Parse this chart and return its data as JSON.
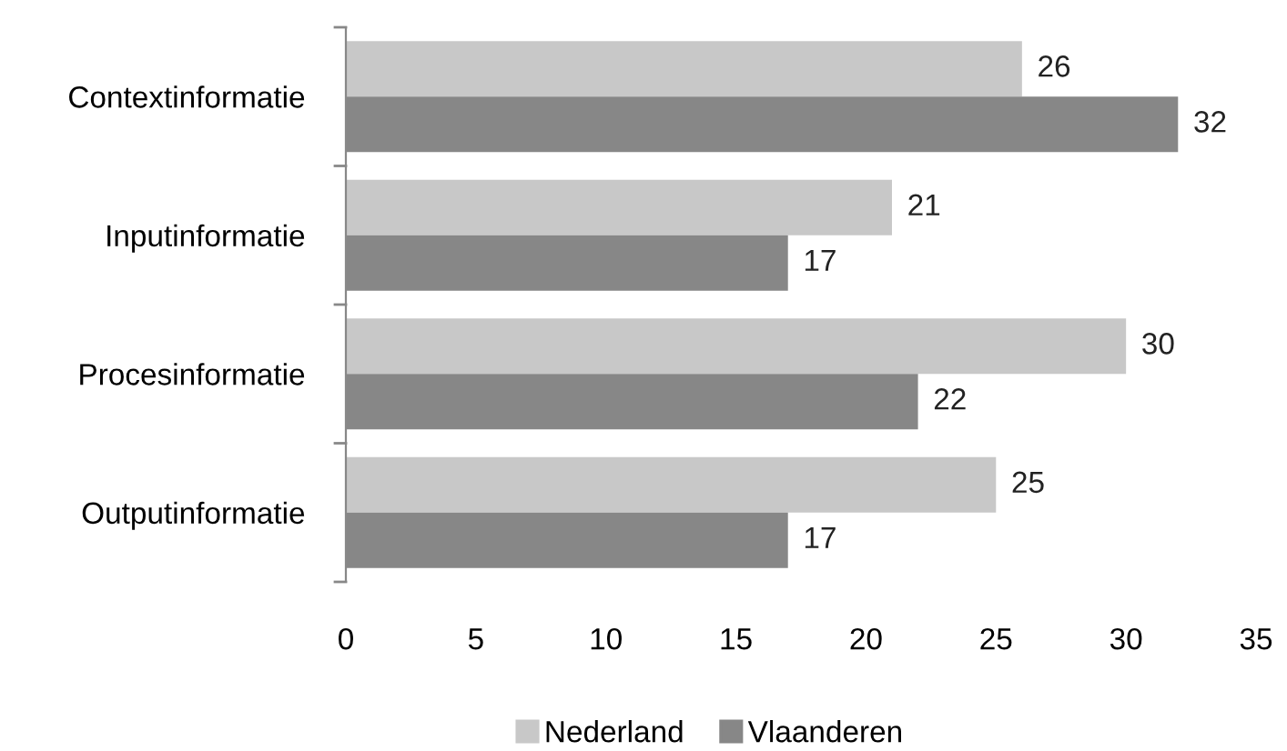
{
  "chart_data": {
    "type": "bar",
    "orientation": "horizontal",
    "categories": [
      "Contextinformatie",
      "Inputinformatie",
      "Procesinformatie",
      "Outputinformatie"
    ],
    "series": [
      {
        "name": "Nederland",
        "color": "#c8c8c8",
        "values": [
          26,
          21,
          30,
          25
        ]
      },
      {
        "name": "Vlaanderen",
        "color": "#878787",
        "values": [
          32,
          17,
          22,
          17
        ]
      }
    ],
    "xlim": [
      0,
      35
    ],
    "xticks": [
      0,
      5,
      10,
      15,
      20,
      25,
      30,
      35
    ],
    "data_labels": true,
    "grid": false,
    "legend": "bottom"
  }
}
